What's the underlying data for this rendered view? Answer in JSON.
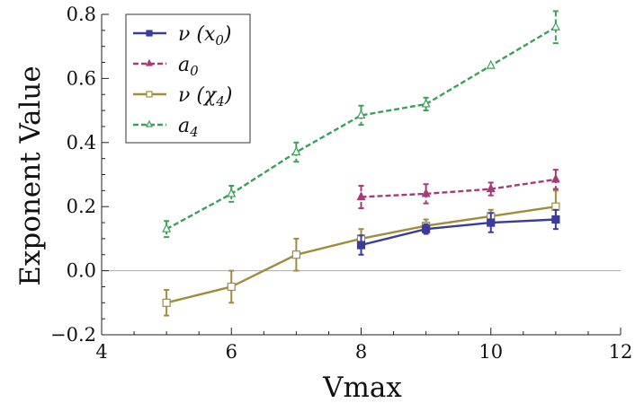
{
  "chart_data": {
    "type": "line",
    "title": "",
    "xlabel": "Vmax",
    "ylabel": "Exponent Value",
    "xlim": [
      4,
      12
    ],
    "ylim": [
      -0.2,
      0.8
    ],
    "xticks": [
      "4",
      "6",
      "8",
      "10",
      "12"
    ],
    "yticks": [
      "−0.2",
      "0.0",
      "0.2",
      "0.4",
      "0.6",
      "0.8"
    ],
    "legend_position": "top-left",
    "series": [
      {
        "name": "ν (x₀)",
        "legend_main": "ν (x",
        "legend_sub": "0",
        "legend_tail": ")",
        "color": "#3b3b9b",
        "dash": "solid",
        "marker": "square-filled",
        "x": [
          8,
          9,
          10,
          11
        ],
        "y": [
          0.08,
          0.13,
          0.15,
          0.16
        ],
        "err": [
          0.03,
          0.015,
          0.03,
          0.03
        ]
      },
      {
        "name": "a₀",
        "legend_main": "a",
        "legend_sub": "0",
        "legend_tail": "",
        "color": "#a83a7a",
        "dash": "dashed",
        "marker": "triangle-filled",
        "x": [
          8,
          9,
          10,
          11
        ],
        "y": [
          0.23,
          0.24,
          0.255,
          0.285
        ],
        "err": [
          0.035,
          0.03,
          0.02,
          0.03
        ]
      },
      {
        "name": "ν (χ₄)",
        "legend_main": "ν (χ",
        "legend_sub": "4",
        "legend_tail": ")",
        "color": "#a08c3a",
        "dash": "solid",
        "marker": "square-open",
        "x": [
          5,
          6,
          7,
          8,
          9,
          10,
          11
        ],
        "y": [
          -0.1,
          -0.05,
          0.05,
          0.1,
          0.14,
          0.17,
          0.2
        ],
        "err": [
          0.04,
          0.05,
          0.05,
          0.03,
          0.02,
          0.02,
          0.05
        ]
      },
      {
        "name": "a₄",
        "legend_main": "a",
        "legend_sub": "4",
        "legend_tail": "",
        "color": "#3aa05a",
        "dash": "dashed",
        "marker": "triangle-open",
        "x": [
          5,
          6,
          7,
          8,
          9,
          10,
          11
        ],
        "y": [
          0.13,
          0.24,
          0.37,
          0.485,
          0.52,
          0.64,
          0.76
        ],
        "err": [
          0.025,
          0.025,
          0.03,
          0.03,
          0.02,
          0.0,
          0.05
        ]
      }
    ]
  }
}
